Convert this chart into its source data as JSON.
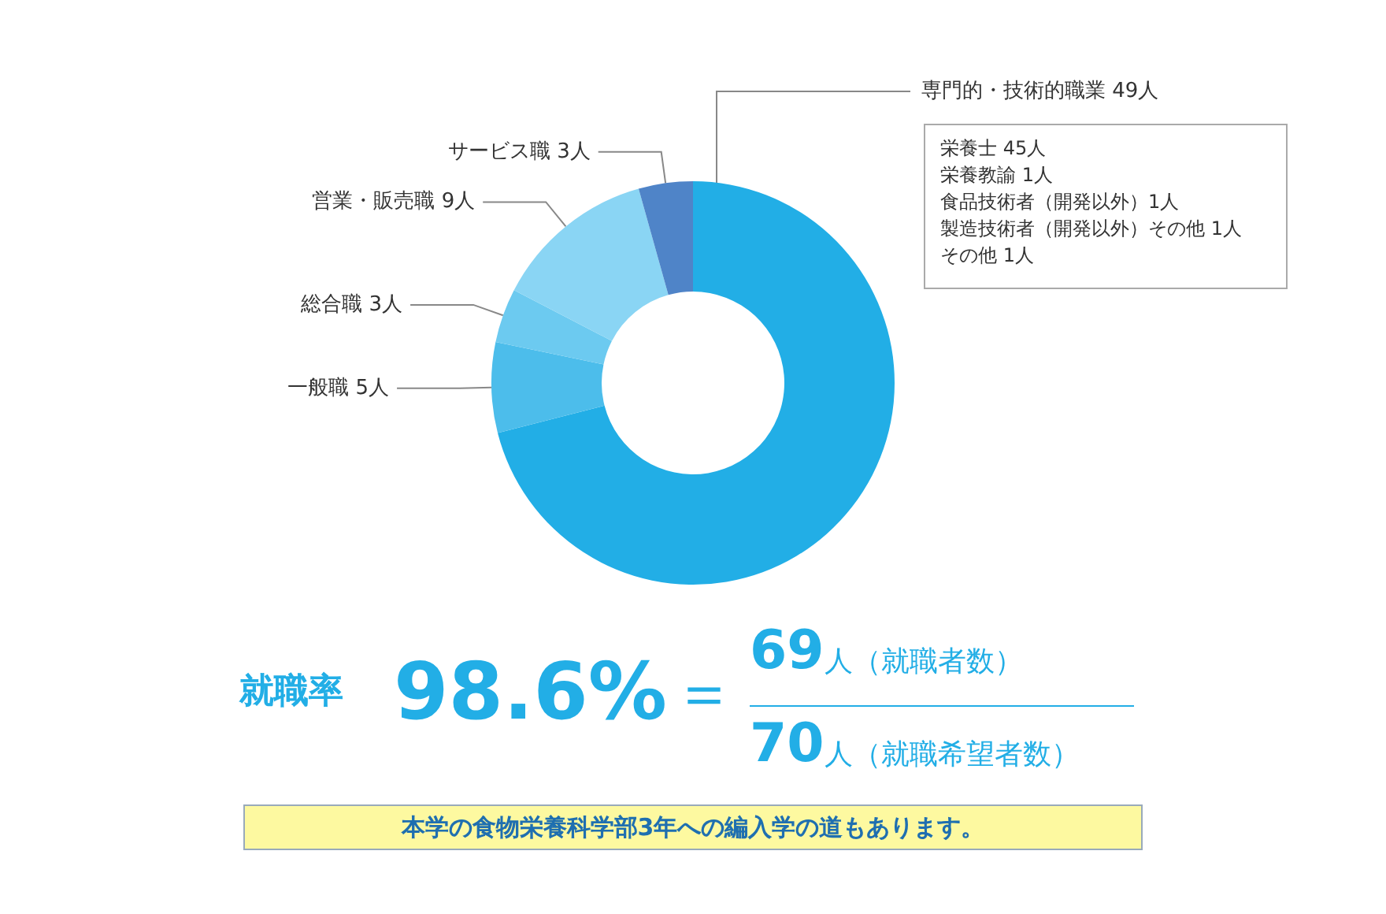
{
  "chart_data": {
    "type": "donut",
    "categories": [
      "専門的・技術的職業",
      "一般職",
      "総合職",
      "営業・販売職",
      "サービス職"
    ],
    "values": [
      49,
      5,
      3,
      9,
      3
    ],
    "value_labels": [
      "49人",
      "5人",
      "3人",
      "9人",
      "3人"
    ],
    "colors": [
      "#22aee6",
      "#4cbdeb",
      "#6ccaf0",
      "#8ad5f4",
      "#4f84c8"
    ],
    "legend": false,
    "annotations": [
      "栄養士 45人",
      "栄養教諭 1人",
      "食品技術者（開発以外）1人",
      "製造技術者（開発以外）その他 1人",
      "その他 1人",
      "就職率",
      "98.6%",
      "＝",
      "69人（就職者数）",
      "70人（就職希望者数）",
      "本学の食物栄養科学部3年への編入学の道もあります。"
    ]
  }
}
